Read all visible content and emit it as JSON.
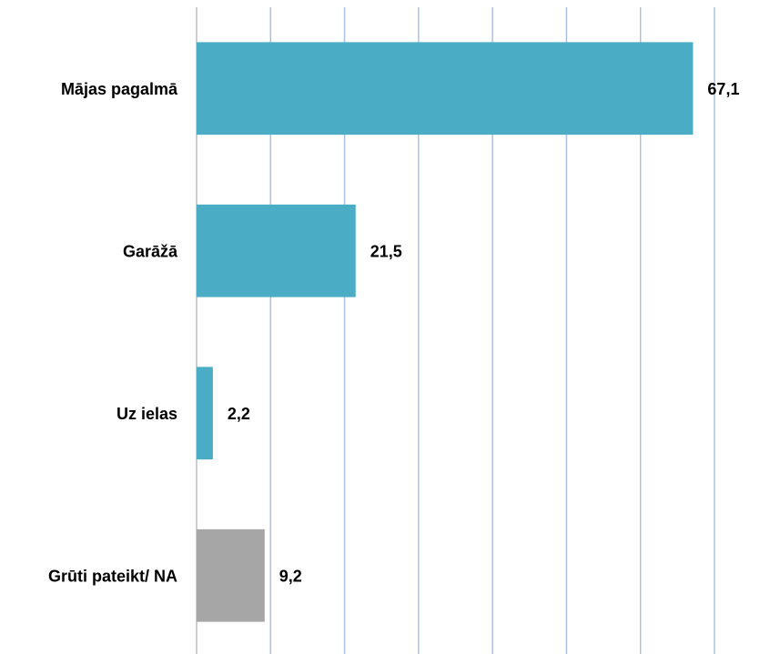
{
  "chart_data": {
    "type": "hbar",
    "categories": [
      "Mājas pagalmā",
      "Garāžā",
      "Uz ielas",
      "Grūti pateikt/ NA"
    ],
    "values": [
      67.1,
      21.5,
      2.2,
      9.2
    ],
    "value_labels": [
      "67,1",
      "21,5",
      "2,2",
      "9,2"
    ],
    "colors": [
      "#4bacc6",
      "#4bacc6",
      "#4bacc6",
      "#a6a6a6"
    ],
    "xlim": [
      0,
      70
    ],
    "xticks": [
      0,
      10,
      20,
      30,
      40,
      50,
      60,
      70
    ],
    "grid": true
  }
}
